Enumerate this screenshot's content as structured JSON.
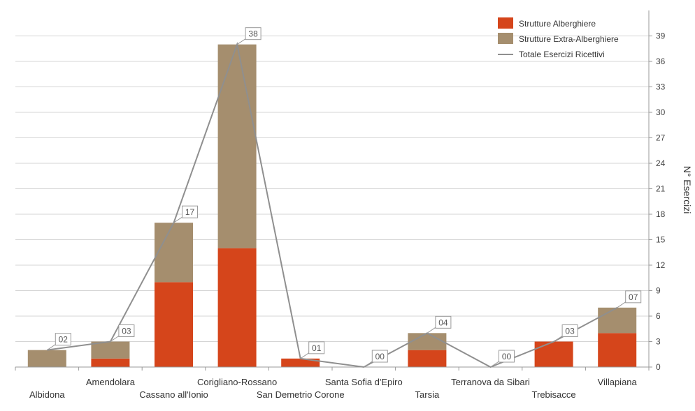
{
  "chart_data": {
    "type": "bar",
    "stacked": true,
    "categories": [
      "Albidona",
      "Amendolara",
      "Cassano all'Ionio",
      "Corigliano-Rossano",
      "San Demetrio Corone",
      "Santa Sofia d'Epiro",
      "Tarsia",
      "Terranova da Sibari",
      "Trebisacce",
      "Villapiana"
    ],
    "series": [
      {
        "name": "Strutture Alberghiere",
        "type": "bar",
        "color": "#d5451b",
        "values": [
          0,
          1,
          10,
          14,
          1,
          0,
          2,
          0,
          3,
          4
        ]
      },
      {
        "name": "Strutture Extra-Alberghiere",
        "type": "bar",
        "color": "#a58e6e",
        "values": [
          2,
          2,
          7,
          24,
          0,
          0,
          2,
          0,
          0,
          3
        ]
      },
      {
        "name": "Totale Esercizi Ricettivi",
        "type": "line",
        "color": "#8f8f8f",
        "values": [
          2,
          3,
          17,
          38,
          1,
          0,
          4,
          0,
          3,
          7
        ]
      }
    ],
    "total_labels": [
      "02",
      "03",
      "17",
      "38",
      "01",
      "00",
      "04",
      "00",
      "03",
      "07"
    ],
    "ylabel": "N° Esercizi",
    "yaxis_position": "right",
    "ylim": [
      0,
      42
    ],
    "yticks": [
      0,
      3,
      6,
      9,
      12,
      15,
      18,
      21,
      24,
      27,
      30,
      33,
      36,
      39
    ],
    "grid": true,
    "legend_position": "top-right"
  }
}
